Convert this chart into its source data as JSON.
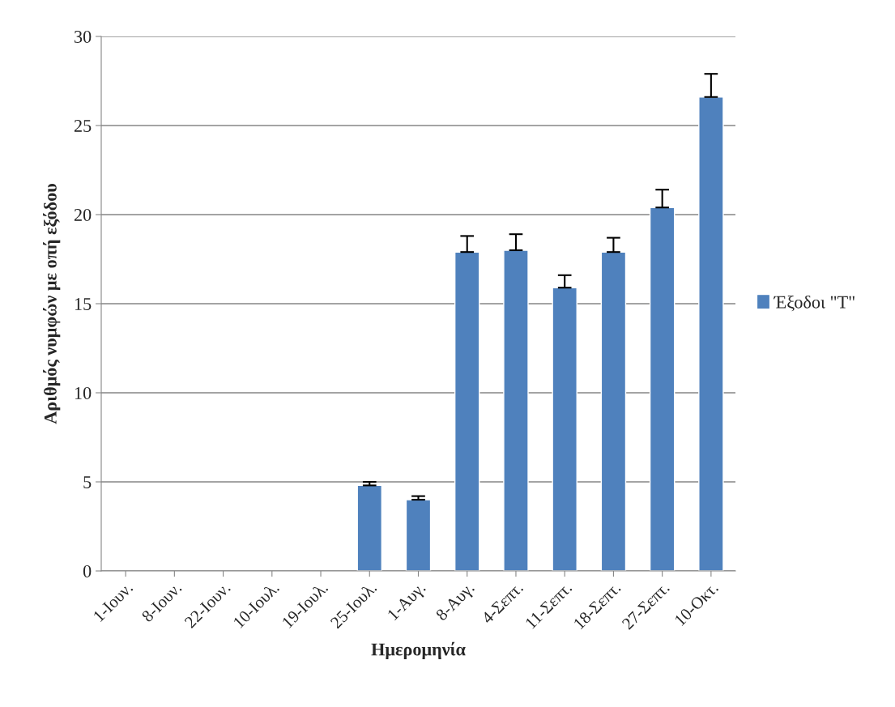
{
  "chart_data": {
    "type": "bar",
    "xlabel": "Ημερομηνία",
    "ylabel": "Αριθμός νυμφών με οπή εξόδου",
    "categories": [
      "1-Ιουν.",
      "8-Ιουν.",
      "22-Ιουν.",
      "10-Ιουλ.",
      "19-Ιουλ.",
      "25-Ιουλ.",
      "1-Αυγ.",
      "8-Αυγ.",
      "4-Σεπτ.",
      "11-Σεπτ.",
      "18-Σεπτ.",
      "27-Σεπτ.",
      "10-Οκτ."
    ],
    "series": [
      {
        "name": "Έξοδοι \"Τ\"",
        "color": "#4f81bd",
        "values": [
          null,
          null,
          null,
          null,
          null,
          4.8,
          4.0,
          17.9,
          18.0,
          15.9,
          17.9,
          20.4,
          26.6
        ],
        "errors": [
          null,
          null,
          null,
          null,
          null,
          [
            4.8,
            5.0
          ],
          [
            4.0,
            4.2
          ],
          [
            17.9,
            18.8
          ],
          [
            18.0,
            18.9
          ],
          [
            15.9,
            16.6
          ],
          [
            17.9,
            18.7
          ],
          [
            20.4,
            21.4
          ],
          [
            26.6,
            27.9
          ]
        ]
      }
    ],
    "ylim": [
      0,
      30
    ],
    "yticks": [
      0,
      5,
      10,
      15,
      20,
      25,
      30
    ],
    "grid": "y",
    "legend": "right"
  }
}
